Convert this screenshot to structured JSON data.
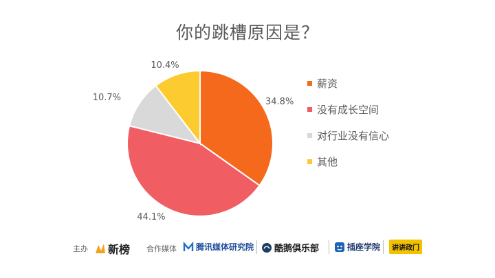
{
  "title": "你的跳槽原因是？",
  "chart_data": {
    "type": "pie",
    "categories": [
      "薪资",
      "没有成长空间",
      "对行业没有信心",
      "其他"
    ],
    "values": [
      34.8,
      44.1,
      10.7,
      10.4
    ],
    "labels": [
      "34.8%",
      "44.1%",
      "10.7%",
      "10.4%"
    ],
    "colors": [
      "#f5691c",
      "#f05e64",
      "#d9d9d9",
      "#fccb2f"
    ],
    "legend_position": "right"
  },
  "footer": {
    "host_label": "主办",
    "host_logo": "新榜",
    "partner_label": "合作媒体",
    "partners": [
      "腾讯媒体研究院",
      "酷鹅俱乐部",
      "插座学院",
      "讲讲政门"
    ]
  }
}
